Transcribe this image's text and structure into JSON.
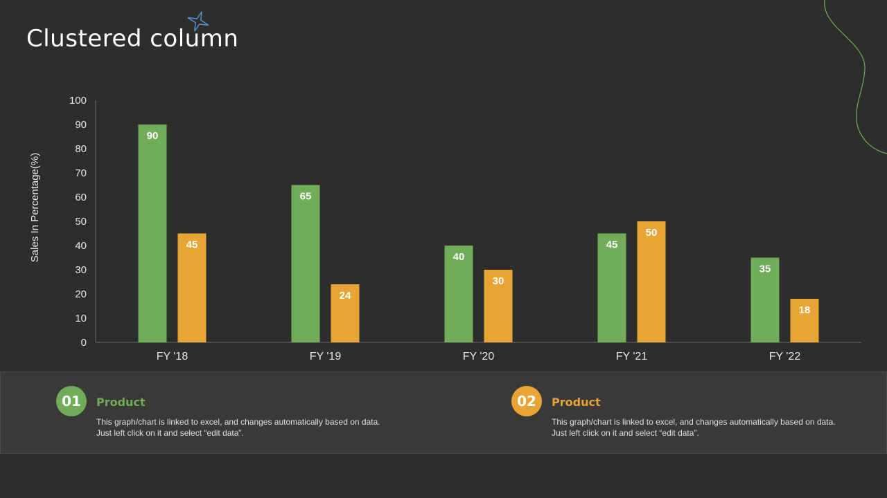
{
  "title": "Clustered column",
  "colors": {
    "background": "#2d2d2b",
    "series1": "#71ad58",
    "series2": "#e8a536",
    "axis": "#6a6a68",
    "text": "#e8e8e8"
  },
  "chart_data": {
    "type": "bar",
    "title": "Clustered column",
    "xlabel": "",
    "ylabel": "Sales In Percentage(%)",
    "ylim": [
      0,
      100
    ],
    "yticks": [
      0,
      10,
      20,
      30,
      40,
      50,
      60,
      70,
      80,
      90,
      100
    ],
    "categories": [
      "FY '18",
      "FY '19",
      "FY '20",
      "FY '21",
      "FY '22"
    ],
    "series": [
      {
        "name": "01 Product",
        "color": "#71ad58",
        "values": [
          90,
          65,
          40,
          45,
          35
        ]
      },
      {
        "name": "02 Product",
        "color": "#e8a536",
        "values": [
          45,
          24,
          30,
          50,
          18
        ]
      }
    ],
    "grid": false,
    "data_labels": true
  },
  "legend": {
    "items": [
      {
        "number": "01",
        "title": "Product",
        "description": "This graph/chart is linked to excel, and changes automatically based on data. Just left click on it and select “edit data”."
      },
      {
        "number": "02",
        "title": "Product",
        "description": "This graph/chart is linked to excel, and changes automatically based on data. Just left click on it and select “edit data”."
      }
    ]
  }
}
